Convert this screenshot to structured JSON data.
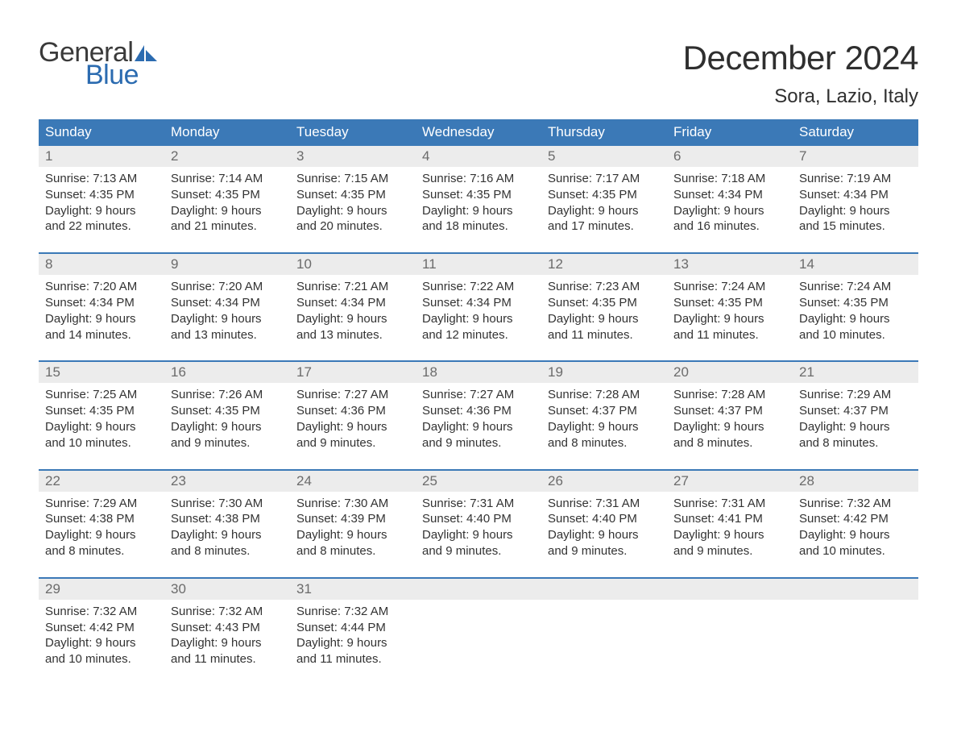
{
  "brand": {
    "word1": "General",
    "word2": "Blue",
    "sail_color": "#2b6bb0",
    "text_dark": "#3a3a3a"
  },
  "title": "December 2024",
  "location": "Sora, Lazio, Italy",
  "colors": {
    "header_bg": "#3b79b7",
    "header_text": "#ffffff",
    "daynum_bg": "#ececec",
    "daynum_text": "#6b6b6b",
    "body_text": "#333333",
    "rule": "#3b79b7",
    "page_bg": "#ffffff"
  },
  "weekdays": [
    "Sunday",
    "Monday",
    "Tuesday",
    "Wednesday",
    "Thursday",
    "Friday",
    "Saturday"
  ],
  "label_sunrise": "Sunrise:",
  "label_sunset": "Sunset:",
  "label_daylight": "Daylight:",
  "weeks": [
    [
      {
        "n": "1",
        "sunrise": "7:13 AM",
        "sunset": "4:35 PM",
        "daylight": "9 hours and 22 minutes."
      },
      {
        "n": "2",
        "sunrise": "7:14 AM",
        "sunset": "4:35 PM",
        "daylight": "9 hours and 21 minutes."
      },
      {
        "n": "3",
        "sunrise": "7:15 AM",
        "sunset": "4:35 PM",
        "daylight": "9 hours and 20 minutes."
      },
      {
        "n": "4",
        "sunrise": "7:16 AM",
        "sunset": "4:35 PM",
        "daylight": "9 hours and 18 minutes."
      },
      {
        "n": "5",
        "sunrise": "7:17 AM",
        "sunset": "4:35 PM",
        "daylight": "9 hours and 17 minutes."
      },
      {
        "n": "6",
        "sunrise": "7:18 AM",
        "sunset": "4:34 PM",
        "daylight": "9 hours and 16 minutes."
      },
      {
        "n": "7",
        "sunrise": "7:19 AM",
        "sunset": "4:34 PM",
        "daylight": "9 hours and 15 minutes."
      }
    ],
    [
      {
        "n": "8",
        "sunrise": "7:20 AM",
        "sunset": "4:34 PM",
        "daylight": "9 hours and 14 minutes."
      },
      {
        "n": "9",
        "sunrise": "7:20 AM",
        "sunset": "4:34 PM",
        "daylight": "9 hours and 13 minutes."
      },
      {
        "n": "10",
        "sunrise": "7:21 AM",
        "sunset": "4:34 PM",
        "daylight": "9 hours and 13 minutes."
      },
      {
        "n": "11",
        "sunrise": "7:22 AM",
        "sunset": "4:34 PM",
        "daylight": "9 hours and 12 minutes."
      },
      {
        "n": "12",
        "sunrise": "7:23 AM",
        "sunset": "4:35 PM",
        "daylight": "9 hours and 11 minutes."
      },
      {
        "n": "13",
        "sunrise": "7:24 AM",
        "sunset": "4:35 PM",
        "daylight": "9 hours and 11 minutes."
      },
      {
        "n": "14",
        "sunrise": "7:24 AM",
        "sunset": "4:35 PM",
        "daylight": "9 hours and 10 minutes."
      }
    ],
    [
      {
        "n": "15",
        "sunrise": "7:25 AM",
        "sunset": "4:35 PM",
        "daylight": "9 hours and 10 minutes."
      },
      {
        "n": "16",
        "sunrise": "7:26 AM",
        "sunset": "4:35 PM",
        "daylight": "9 hours and 9 minutes."
      },
      {
        "n": "17",
        "sunrise": "7:27 AM",
        "sunset": "4:36 PM",
        "daylight": "9 hours and 9 minutes."
      },
      {
        "n": "18",
        "sunrise": "7:27 AM",
        "sunset": "4:36 PM",
        "daylight": "9 hours and 9 minutes."
      },
      {
        "n": "19",
        "sunrise": "7:28 AM",
        "sunset": "4:37 PM",
        "daylight": "9 hours and 8 minutes."
      },
      {
        "n": "20",
        "sunrise": "7:28 AM",
        "sunset": "4:37 PM",
        "daylight": "9 hours and 8 minutes."
      },
      {
        "n": "21",
        "sunrise": "7:29 AM",
        "sunset": "4:37 PM",
        "daylight": "9 hours and 8 minutes."
      }
    ],
    [
      {
        "n": "22",
        "sunrise": "7:29 AM",
        "sunset": "4:38 PM",
        "daylight": "9 hours and 8 minutes."
      },
      {
        "n": "23",
        "sunrise": "7:30 AM",
        "sunset": "4:38 PM",
        "daylight": "9 hours and 8 minutes."
      },
      {
        "n": "24",
        "sunrise": "7:30 AM",
        "sunset": "4:39 PM",
        "daylight": "9 hours and 8 minutes."
      },
      {
        "n": "25",
        "sunrise": "7:31 AM",
        "sunset": "4:40 PM",
        "daylight": "9 hours and 9 minutes."
      },
      {
        "n": "26",
        "sunrise": "7:31 AM",
        "sunset": "4:40 PM",
        "daylight": "9 hours and 9 minutes."
      },
      {
        "n": "27",
        "sunrise": "7:31 AM",
        "sunset": "4:41 PM",
        "daylight": "9 hours and 9 minutes."
      },
      {
        "n": "28",
        "sunrise": "7:32 AM",
        "sunset": "4:42 PM",
        "daylight": "9 hours and 10 minutes."
      }
    ],
    [
      {
        "n": "29",
        "sunrise": "7:32 AM",
        "sunset": "4:42 PM",
        "daylight": "9 hours and 10 minutes."
      },
      {
        "n": "30",
        "sunrise": "7:32 AM",
        "sunset": "4:43 PM",
        "daylight": "9 hours and 11 minutes."
      },
      {
        "n": "31",
        "sunrise": "7:32 AM",
        "sunset": "4:44 PM",
        "daylight": "9 hours and 11 minutes."
      },
      null,
      null,
      null,
      null
    ]
  ]
}
